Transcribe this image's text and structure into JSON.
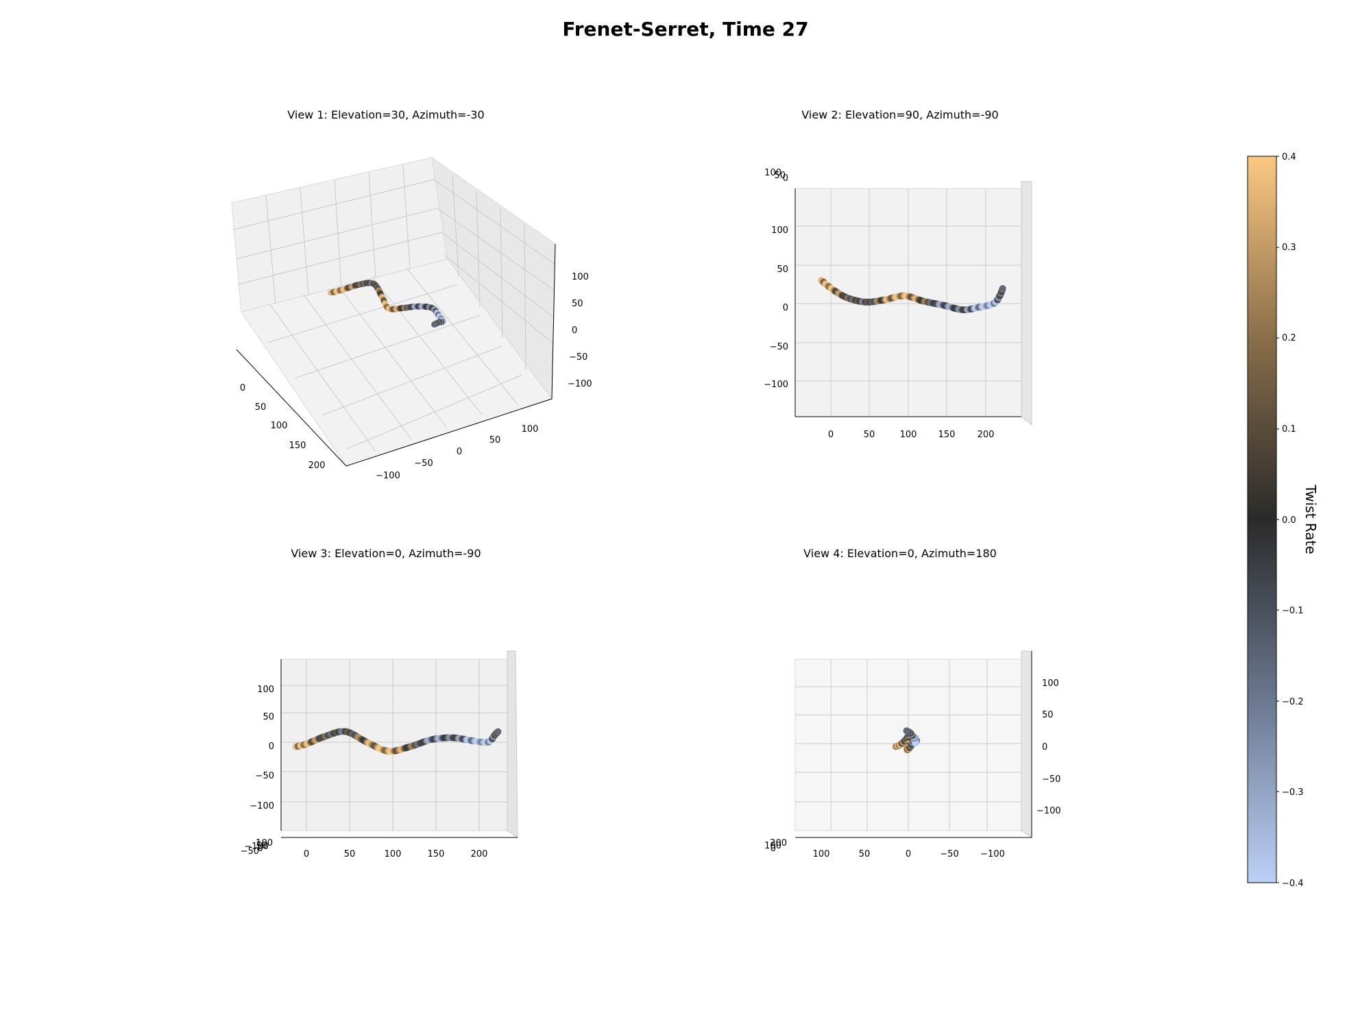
{
  "figure": {
    "title": "Frenet-Serret, Time 27"
  },
  "colorbar": {
    "label": "Twist Rate",
    "range": [
      -0.4,
      0.4
    ],
    "ticks": [
      "0.4",
      "0.3",
      "0.2",
      "0.1",
      "0.0",
      "−0.1",
      "−0.2",
      "−0.3",
      "−0.4"
    ],
    "colormap": [
      "#bcd0f7",
      "#2b2b2b",
      "#fbc882"
    ]
  },
  "chart_data": [
    {
      "type": "scatter",
      "projection": "3d",
      "title": "View 1: Elevation=30, Azimuth=-30",
      "elevation": 30,
      "azimuth": -30,
      "xlim": [
        -45,
        245
      ],
      "ylim": [
        -140,
        140
      ],
      "zlim": [
        -140,
        140
      ],
      "x_ticks": [
        "0",
        "50",
        "100",
        "150",
        "200"
      ],
      "y_ticks": [
        "−100",
        "−50",
        "0",
        "50",
        "100"
      ],
      "z_ticks": [
        "−100",
        "−50",
        "0",
        "50",
        "100"
      ],
      "grid": true
    },
    {
      "type": "scatter",
      "projection": "3d",
      "title": "View 2: Elevation=90, Azimuth=-90",
      "elevation": 90,
      "azimuth": -90,
      "x_ticks": [
        "0",
        "50",
        "100",
        "150",
        "200"
      ],
      "y_ticks": [
        "−100",
        "−50",
        "0",
        "50",
        "100"
      ],
      "z_ticks_overlapping": [
        "100",
        "50",
        "0",
        "−50",
        "−100"
      ],
      "grid": true
    },
    {
      "type": "scatter",
      "projection": "3d",
      "title": "View 3: Elevation=0, Azimuth=-90",
      "elevation": 0,
      "azimuth": -90,
      "x_ticks": [
        "0",
        "50",
        "100",
        "150",
        "200"
      ],
      "z_ticks": [
        "−100",
        "−50",
        "0",
        "50",
        "100"
      ],
      "y_ticks_overlapping": [
        "100",
        "50",
        "0",
        "−50",
        "−100"
      ],
      "grid": true
    },
    {
      "type": "scatter",
      "projection": "3d",
      "title": "View 4: Elevation=0, Azimuth=180",
      "elevation": 0,
      "azimuth": 180,
      "y_ticks": [
        "100",
        "50",
        "0",
        "−50",
        "−100"
      ],
      "z_ticks": [
        "100",
        "50",
        "0",
        "−50",
        "−100"
      ],
      "x_ticks_overlapping": [
        "200",
        "100",
        "0"
      ],
      "grid": true
    }
  ],
  "curve": {
    "description": "tube-like filament of points, color = twist rate",
    "control_points": [
      {
        "x": -12,
        "y": 30,
        "z": -5,
        "t": 0.25
      },
      {
        "x": 0,
        "y": 20,
        "z": -2,
        "t": 0.3
      },
      {
        "x": 20,
        "y": 8,
        "z": 6,
        "t": 0.05
      },
      {
        "x": 45,
        "y": 2,
        "z": 12,
        "t": -0.05
      },
      {
        "x": 70,
        "y": 5,
        "z": 0,
        "t": 0.2
      },
      {
        "x": 95,
        "y": 10,
        "z": -10,
        "t": 0.3
      },
      {
        "x": 120,
        "y": 3,
        "z": -5,
        "t": 0.1
      },
      {
        "x": 145,
        "y": -2,
        "z": 3,
        "t": -0.2
      },
      {
        "x": 170,
        "y": -8,
        "z": 5,
        "t": -0.1
      },
      {
        "x": 190,
        "y": -5,
        "z": 2,
        "t": -0.3
      },
      {
        "x": 210,
        "y": 0,
        "z": 0,
        "t": -0.35
      },
      {
        "x": 218,
        "y": 10,
        "z": 8,
        "t": -0.1
      },
      {
        "x": 222,
        "y": 20,
        "z": 12,
        "t": -0.05
      }
    ]
  }
}
